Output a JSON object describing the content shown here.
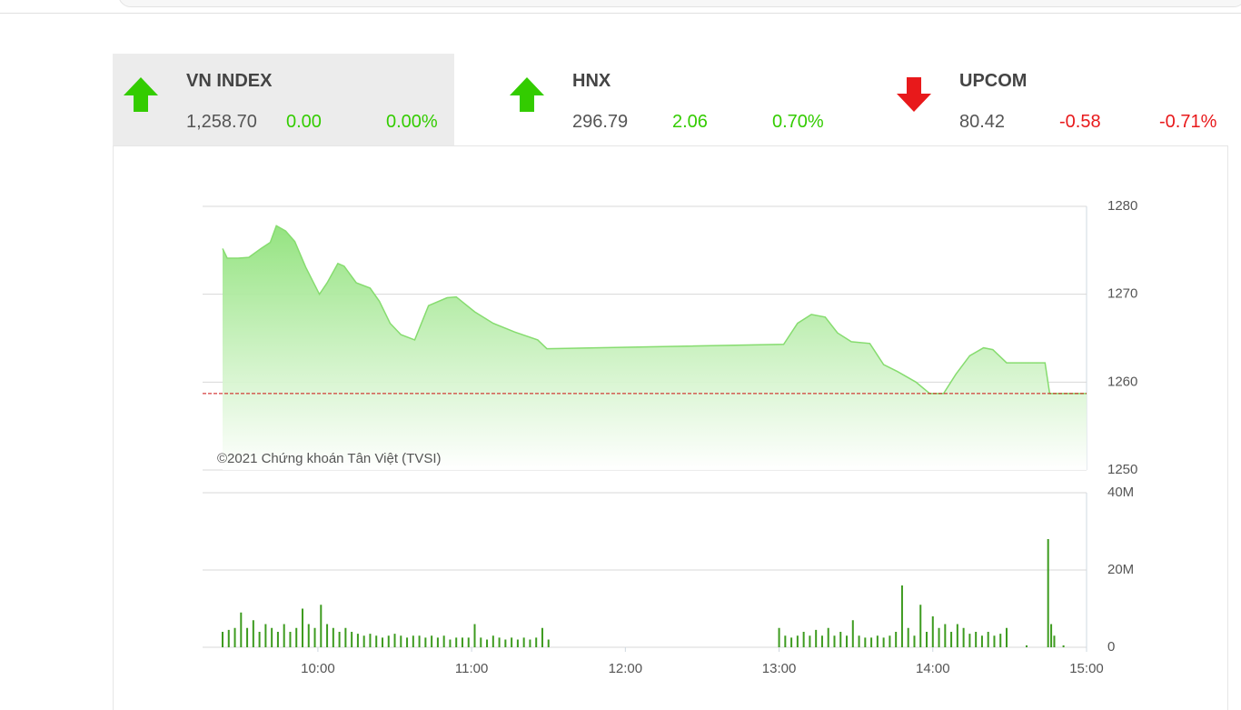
{
  "indices": [
    {
      "name": "VN INDEX",
      "value": "1,258.70",
      "change": "0.00",
      "percent": "0.00%",
      "trend": "up",
      "color": "#33cc00",
      "active": true
    },
    {
      "name": "HNX",
      "value": "296.79",
      "change": "2.06",
      "percent": "0.70%",
      "trend": "up",
      "color": "#33cc00",
      "active": false
    },
    {
      "name": "UPCOM",
      "value": "80.42",
      "change": "-0.58",
      "percent": "-0.71%",
      "trend": "down",
      "color": "#e8191b",
      "active": false
    }
  ],
  "chart_data": [
    {
      "type": "area",
      "annotation": "©2021 Chứng khoán Tân Việt (TVSI)",
      "x": [
        9.38,
        9.41,
        9.48,
        9.55,
        9.63,
        9.69,
        9.73,
        9.79,
        9.85,
        9.92,
        10.01,
        10.06,
        10.13,
        10.17,
        10.25,
        10.34,
        10.4,
        10.47,
        10.54,
        10.63,
        10.72,
        10.84,
        10.9,
        11.02,
        11.14,
        11.28,
        11.43,
        11.49,
        13.03,
        13.12,
        13.21,
        13.3,
        13.38,
        13.47,
        13.59,
        13.68,
        13.77,
        13.89,
        13.98,
        14.07,
        14.15,
        14.24,
        14.33,
        14.39,
        14.48,
        14.73,
        14.76,
        15.0
      ],
      "values": [
        1275.2,
        1274.1,
        1274.1,
        1274.2,
        1275.2,
        1275.9,
        1277.8,
        1277.2,
        1276.0,
        1273.1,
        1270.0,
        1271.3,
        1273.5,
        1273.2,
        1271.3,
        1270.7,
        1269.2,
        1266.7,
        1265.4,
        1264.8,
        1268.7,
        1269.6,
        1269.7,
        1268.0,
        1266.7,
        1265.7,
        1264.8,
        1263.8,
        1264.3,
        1266.7,
        1267.7,
        1267.4,
        1265.6,
        1264.6,
        1264.4,
        1262.0,
        1261.2,
        1260.0,
        1258.7,
        1258.7,
        1260.9,
        1263.0,
        1263.9,
        1263.7,
        1262.2,
        1262.2,
        1258.7,
        1258.7
      ],
      "color": "#86dc6f",
      "reference_line": 1258.7,
      "reference_color": "#cc1111",
      "xlim": [
        9.25,
        15
      ],
      "ylim": [
        1250,
        1280
      ],
      "yticks": [
        1250,
        1260,
        1270,
        1280
      ],
      "grid": true
    },
    {
      "type": "bar",
      "x": [
        9.38,
        9.42,
        9.46,
        9.5,
        9.54,
        9.58,
        9.62,
        9.66,
        9.7,
        9.74,
        9.78,
        9.82,
        9.86,
        9.9,
        9.94,
        9.98,
        10.02,
        10.06,
        10.1,
        10.14,
        10.18,
        10.22,
        10.26,
        10.3,
        10.34,
        10.38,
        10.42,
        10.46,
        10.5,
        10.54,
        10.58,
        10.62,
        10.66,
        10.7,
        10.74,
        10.78,
        10.82,
        10.86,
        10.9,
        10.94,
        10.98,
        11.02,
        11.06,
        11.1,
        11.14,
        11.18,
        11.22,
        11.26,
        11.3,
        11.34,
        11.38,
        11.42,
        11.46,
        11.5,
        13.0,
        13.04,
        13.08,
        13.12,
        13.16,
        13.2,
        13.24,
        13.28,
        13.32,
        13.36,
        13.4,
        13.44,
        13.48,
        13.52,
        13.56,
        13.6,
        13.64,
        13.68,
        13.72,
        13.76,
        13.8,
        13.84,
        13.88,
        13.92,
        13.96,
        14.0,
        14.04,
        14.08,
        14.12,
        14.16,
        14.2,
        14.24,
        14.28,
        14.32,
        14.36,
        14.4,
        14.44,
        14.48,
        14.61,
        14.75,
        14.77,
        14.79,
        14.85
      ],
      "values": [
        4,
        4.5,
        5,
        9,
        5,
        7,
        4,
        6,
        5,
        4,
        6,
        4,
        5,
        10,
        6,
        5,
        11,
        6,
        5,
        4,
        5,
        4,
        3.5,
        3,
        3.5,
        3,
        2.5,
        3,
        3.5,
        3,
        2.5,
        3,
        3,
        2.5,
        3,
        2.5,
        3,
        2,
        2.5,
        2.5,
        2.5,
        6,
        2.5,
        2,
        3,
        2.5,
        2,
        2.5,
        2,
        2.5,
        2,
        2.5,
        5,
        2,
        5,
        3,
        2.5,
        3,
        4,
        3,
        4.5,
        3,
        5,
        3,
        4,
        3,
        7,
        3,
        2.5,
        2.5,
        3,
        2.5,
        3,
        4,
        16,
        5,
        3,
        11,
        4,
        8,
        5,
        6,
        4,
        6,
        5,
        3.5,
        4,
        3,
        4,
        3,
        3.5,
        5,
        0.5,
        28,
        6,
        3,
        0.5
      ],
      "color": "#3d9b1f",
      "xlim": [
        9.25,
        15
      ],
      "xticks": [
        {
          "value": 10,
          "label": "10:00"
        },
        {
          "value": 11,
          "label": "11:00"
        },
        {
          "value": 12,
          "label": "12:00"
        },
        {
          "value": 13,
          "label": "13:00"
        },
        {
          "value": 14,
          "label": "14:00"
        },
        {
          "value": 15,
          "label": "15:00"
        }
      ],
      "ylim": [
        0,
        40
      ],
      "yticks": [
        0,
        {
          "value": 20,
          "label": "20M"
        },
        {
          "value": 40,
          "label": "40M"
        }
      ],
      "grid": true
    }
  ]
}
